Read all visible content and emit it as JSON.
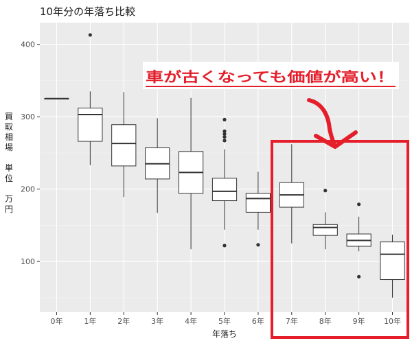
{
  "colors": {
    "panel_bg": "#ebebeb",
    "grid_major": "#ffffff",
    "box_fill": "#ffffff",
    "box_stroke": "#333333",
    "highlight": "#e41f2b"
  },
  "chart_data": {
    "type": "boxplot",
    "title": "10年分の年落ち比較",
    "xlabel": "年落ち",
    "ylabel_chars": [
      "買",
      "取",
      "相",
      "場",
      "",
      "単",
      "位",
      "",
      "万",
      "円"
    ],
    "ylim": [
      30,
      430
    ],
    "yticks": [
      100,
      200,
      300,
      400
    ],
    "categories": [
      "0年",
      "1年",
      "2年",
      "3年",
      "4年",
      "5年",
      "6年",
      "7年",
      "8年",
      "9年",
      "10年"
    ],
    "boxes": [
      {
        "min": 325,
        "q1": 325,
        "median": 325,
        "q3": 325,
        "max": 325,
        "outliers": []
      },
      {
        "min": 233,
        "q1": 266,
        "median": 303,
        "q3": 312,
        "max": 335,
        "outliers": [
          413
        ]
      },
      {
        "min": 189,
        "q1": 232,
        "median": 263,
        "q3": 289,
        "max": 334,
        "outliers": []
      },
      {
        "min": 167,
        "q1": 214,
        "median": 235,
        "q3": 257,
        "max": 298,
        "outliers": []
      },
      {
        "min": 117,
        "q1": 194,
        "median": 223,
        "q3": 252,
        "max": 326,
        "outliers": []
      },
      {
        "min": 144,
        "q1": 184,
        "median": 197,
        "q3": 215,
        "max": 255,
        "outliers": [
          122,
          267,
          272,
          276,
          280,
          296
        ]
      },
      {
        "min": 144,
        "q1": 168,
        "median": 187,
        "q3": 194,
        "max": 224,
        "outliers": [
          123
        ]
      },
      {
        "min": 125,
        "q1": 175,
        "median": 192,
        "q3": 209,
        "max": 262,
        "outliers": []
      },
      {
        "min": 117,
        "q1": 136,
        "median": 147,
        "q3": 151,
        "max": 168,
        "outliers": [
          198
        ]
      },
      {
        "min": 114,
        "q1": 121,
        "median": 129,
        "q3": 138,
        "max": 162,
        "outliers": [
          79,
          179
        ]
      },
      {
        "min": 50,
        "q1": 75,
        "median": 110,
        "q3": 127,
        "max": 137,
        "outliers": []
      }
    ],
    "annotation": {
      "text": "車が古くなっても価値が高い！",
      "highlight_range": [
        "7年",
        "10年"
      ]
    }
  }
}
